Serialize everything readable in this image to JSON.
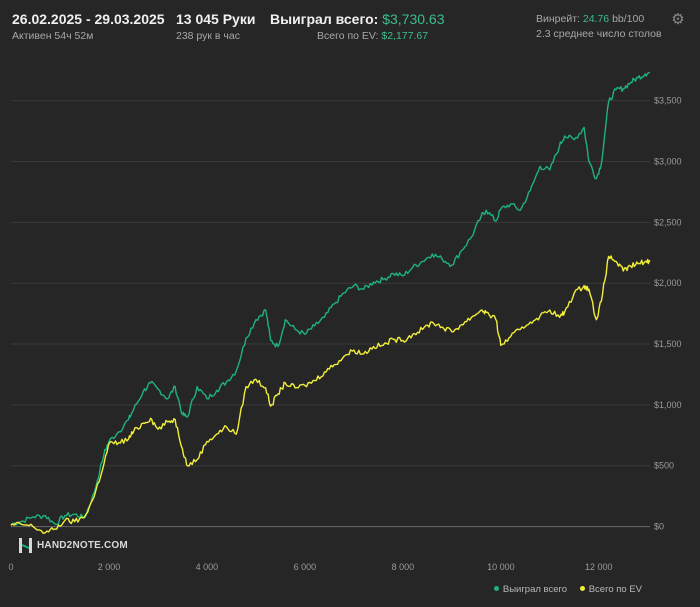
{
  "header": {
    "date_range": "26.02.2025 - 29.03.2025",
    "active_time": "Активен 54ч 52м",
    "hands": "13 045 Руки",
    "hands_per_hour": "238 рук в час",
    "won_label": "Выиграл всего:",
    "won_value": "$3,730.63",
    "ev_label": "Всего по EV:",
    "ev_value": "$2,177.67",
    "winrate_label": "Винрейт:",
    "winrate_value": "24.76",
    "winrate_unit": "bb/100",
    "avg_tables": "2.3 среднее число столов",
    "settings_icon": "gear-icon"
  },
  "logo_text": "HAND2NOTE.COM",
  "legend": {
    "won": "Выиграл всего",
    "ev": "Всего по EV"
  },
  "colors": {
    "won": "#1eb37c",
    "ev": "#f2ef3a",
    "background": "#262626",
    "grid": "#3a3a3a"
  },
  "chart_data": {
    "type": "line",
    "title": "",
    "xlabel": "",
    "ylabel": "",
    "xlim": [
      0,
      13045
    ],
    "ylim": [
      -250,
      3900
    ],
    "x_ticks": [
      0,
      2000,
      4000,
      6000,
      8000,
      10000,
      12000
    ],
    "x_tick_labels": [
      "0",
      "2 000",
      "4 000",
      "6 000",
      "8 000",
      "10 000",
      "12 000"
    ],
    "y_ticks": [
      0,
      500,
      1000,
      1500,
      2000,
      2500,
      3000,
      3500
    ],
    "y_tick_labels": [
      "$0",
      "$500",
      "$1,000",
      "$1,500",
      "$2,000",
      "$2,500",
      "$3,000",
      "$3,500"
    ],
    "x": [
      0,
      200,
      450,
      700,
      900,
      1100,
      1300,
      1500,
      1700,
      1900,
      2000,
      2200,
      2400,
      2500,
      2700,
      2850,
      3000,
      3200,
      3350,
      3500,
      3600,
      3800,
      4000,
      4200,
      4400,
      4600,
      4800,
      5000,
      5200,
      5300,
      5450,
      5600,
      5800,
      6000,
      6200,
      6400,
      6600,
      6800,
      7000,
      7200,
      7400,
      7600,
      7800,
      8000,
      8200,
      8400,
      8600,
      8800,
      9000,
      9200,
      9400,
      9600,
      9700,
      9900,
      10000,
      10200,
      10400,
      10600,
      10800,
      11000,
      11200,
      11300,
      11500,
      11700,
      11800,
      11950,
      12050,
      12200,
      12350,
      12500,
      12650,
      12800,
      12950,
      13045
    ],
    "series": [
      {
        "name": "Выиграл всего",
        "values": [
          20,
          40,
          80,
          90,
          20,
          90,
          100,
          70,
          280,
          600,
          700,
          780,
          880,
          960,
          1110,
          1180,
          1130,
          1050,
          1150,
          920,
          900,
          1150,
          1050,
          1120,
          1190,
          1280,
          1550,
          1700,
          1780,
          1530,
          1480,
          1700,
          1620,
          1580,
          1650,
          1720,
          1830,
          1920,
          1980,
          1950,
          2010,
          2030,
          2080,
          2060,
          2130,
          2180,
          2240,
          2200,
          2150,
          2270,
          2380,
          2550,
          2600,
          2510,
          2610,
          2650,
          2600,
          2760,
          2960,
          2930,
          3130,
          3210,
          3180,
          3280,
          3000,
          2860,
          2980,
          3490,
          3590,
          3600,
          3650,
          3690,
          3720,
          3731
        ]
      },
      {
        "name": "Всего по EV",
        "values": [
          10,
          20,
          0,
          -50,
          -20,
          50,
          40,
          80,
          250,
          520,
          680,
          690,
          720,
          780,
          850,
          890,
          800,
          860,
          880,
          640,
          500,
          550,
          700,
          760,
          820,
          760,
          1150,
          1210,
          1140,
          990,
          1090,
          1180,
          1140,
          1160,
          1200,
          1270,
          1330,
          1400,
          1450,
          1420,
          1480,
          1490,
          1540,
          1530,
          1580,
          1620,
          1680,
          1640,
          1600,
          1660,
          1720,
          1780,
          1760,
          1700,
          1490,
          1560,
          1620,
          1680,
          1730,
          1780,
          1720,
          1760,
          1920,
          1980,
          1950,
          1700,
          1850,
          2220,
          2180,
          2100,
          2140,
          2160,
          2180,
          2178
        ]
      }
    ],
    "grid": true,
    "legend_position": "bottom-right"
  }
}
